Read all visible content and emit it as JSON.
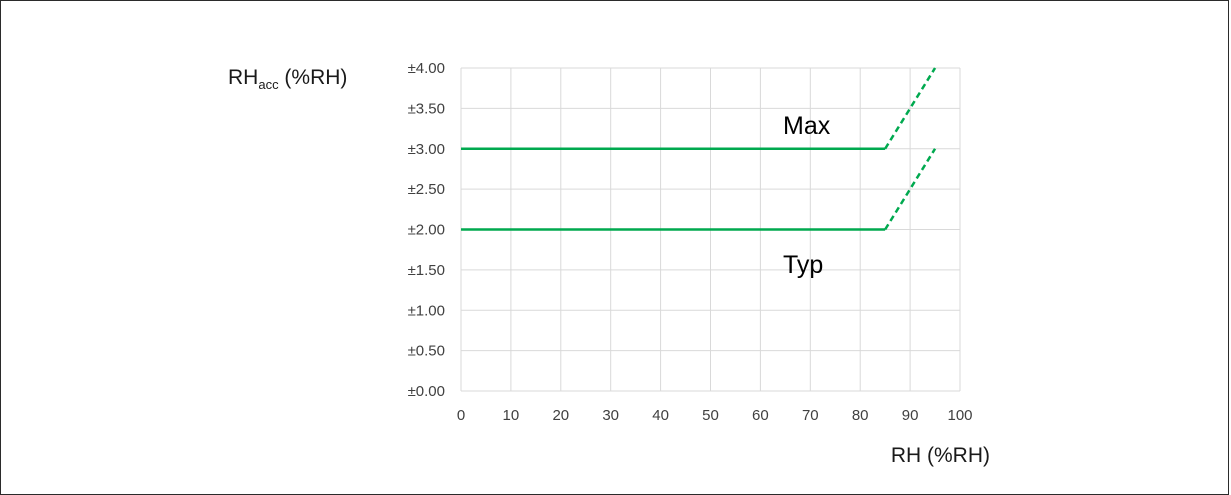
{
  "chart_data": {
    "type": "line",
    "xlabel": "RH (%RH)",
    "ylabel": {
      "main": "RH",
      "sub": "acc",
      "suffix": " (%RH)"
    },
    "xlim": [
      0,
      100
    ],
    "ylim": [
      0,
      4
    ],
    "x_ticks": [
      "0",
      "10",
      "20",
      "30",
      "40",
      "50",
      "60",
      "70",
      "80",
      "90",
      "100"
    ],
    "y_ticks": [
      "±0.00",
      "±0.50",
      "±1.00",
      "±1.50",
      "±2.00",
      "±2.50",
      "±3.00",
      "±3.50",
      "±4.00"
    ],
    "grid": true,
    "series": [
      {
        "name": "Max",
        "color": "#00a94f",
        "solid": [
          [
            0,
            3.0
          ],
          [
            85,
            3.0
          ]
        ],
        "dashed": [
          [
            85,
            3.0
          ],
          [
            95,
            4.0
          ]
        ]
      },
      {
        "name": "Typ",
        "color": "#00a94f",
        "solid": [
          [
            0,
            2.0
          ],
          [
            85,
            2.0
          ]
        ],
        "dashed": [
          [
            85,
            2.0
          ],
          [
            95,
            3.0
          ]
        ]
      }
    ]
  }
}
